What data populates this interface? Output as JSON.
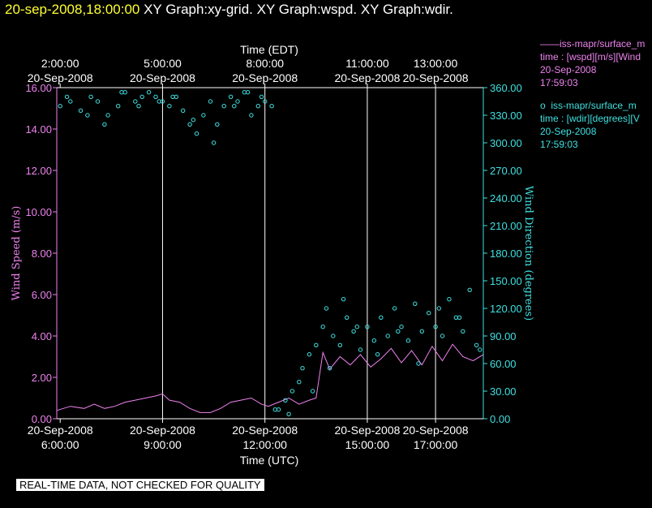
{
  "header": {
    "timestamp": "20-sep-2008,18:00:00",
    "graph_titles": [
      "XY Graph:xy-grid.",
      "XY Graph:wspd.",
      "XY Graph:wdir."
    ]
  },
  "legend": [
    {
      "marker": "——",
      "lines": [
        "iss-mapr/surface_m",
        "time : [wspd][m/s][Wind",
        "20-Sep-2008",
        "17:59:03"
      ],
      "color": "#ee82ee"
    },
    {
      "marker": "o",
      "lines": [
        "iss-mapr/surface_m",
        "time : [wdir][degrees][V",
        "20-Sep-2008",
        "17:59:03"
      ],
      "color": "#40e0e0"
    }
  ],
  "disclaimer": "REAL-TIME DATA, NOT CHECKED FOR QUALITY",
  "colors": {
    "speed": "#ee82ee",
    "direction": "#40e0e0",
    "grid": "#ffffff",
    "timestamp": "#ffff33"
  },
  "chart_data": {
    "type": "scatter",
    "top_axis_label": "Time (EDT)",
    "bottom_axis_label": "Time (UTC)",
    "left_axis_label": "Wind Speed (m/s)",
    "right_axis_label": "Wind Direction (degrees)",
    "x_range_utc_hours": [
      5.9,
      18.4
    ],
    "gridlines_utc_hours": [
      9,
      12,
      15,
      17
    ],
    "top_ticks": [
      {
        "hour": 6,
        "lines": [
          "2:00:00",
          "20-Sep-2008"
        ]
      },
      {
        "hour": 9,
        "lines": [
          "5:00:00",
          "20-Sep-2008"
        ]
      },
      {
        "hour": 12,
        "lines": [
          "8:00:00",
          "20-Sep-2008"
        ]
      },
      {
        "hour": 15,
        "lines": [
          "11:00:00",
          "20-Sep-2008"
        ]
      },
      {
        "hour": 17,
        "lines": [
          "13:00:00",
          "20-Sep-2008"
        ]
      }
    ],
    "bottom_ticks": [
      {
        "hour": 6,
        "lines": [
          "20-Sep-2008",
          "6:00:00"
        ]
      },
      {
        "hour": 9,
        "lines": [
          "20-Sep-2008",
          "9:00:00"
        ]
      },
      {
        "hour": 12,
        "lines": [
          "20-Sep-2008",
          "12:00:00"
        ]
      },
      {
        "hour": 15,
        "lines": [
          "20-Sep-2008",
          "15:00:00"
        ]
      },
      {
        "hour": 17,
        "lines": [
          "20-Sep-2008",
          "17:00:00"
        ]
      }
    ],
    "left_ticks": {
      "values": [
        0,
        2,
        4,
        6,
        8,
        10,
        12,
        14,
        16
      ],
      "labels": [
        "0.00",
        "2.00",
        "4.00",
        "6.00",
        "8.00",
        "10.00",
        "12.00",
        "14.00",
        "16.00"
      ]
    },
    "right_ticks": {
      "values": [
        0,
        30,
        60,
        90,
        120,
        150,
        180,
        210,
        240,
        270,
        300,
        330,
        360
      ],
      "labels": [
        "0.00",
        "30.00",
        "60.00",
        "90.00",
        "120.00",
        "150.00",
        "180.00",
        "210.00",
        "240.00",
        "270.00",
        "300.00",
        "330.00",
        "360.00"
      ]
    },
    "ylim_left": [
      0,
      16
    ],
    "ylim_right": [
      0,
      360
    ],
    "series": [
      {
        "name": "iss-mapr/surface_m wspd",
        "style": "line",
        "axis": "left",
        "x": [
          5.9,
          6.3,
          6.7,
          7.0,
          7.3,
          7.6,
          7.9,
          8.2,
          8.5,
          8.8,
          9.0,
          9.2,
          9.5,
          9.8,
          10.1,
          10.4,
          10.7,
          11.0,
          11.3,
          11.6,
          11.9,
          12.1,
          12.4,
          12.7,
          13.0,
          13.3,
          13.5,
          13.7,
          13.9,
          14.2,
          14.5,
          14.8,
          15.1,
          15.4,
          15.7,
          16.0,
          16.3,
          16.6,
          16.9,
          17.2,
          17.5,
          17.8,
          18.1,
          18.4
        ],
        "y": [
          0.4,
          0.6,
          0.5,
          0.7,
          0.5,
          0.6,
          0.8,
          0.9,
          1.0,
          1.1,
          1.2,
          0.9,
          0.8,
          0.5,
          0.3,
          0.3,
          0.5,
          0.8,
          0.9,
          1.0,
          0.7,
          0.6,
          0.8,
          1.0,
          0.7,
          0.9,
          1.0,
          3.2,
          2.4,
          3.0,
          2.6,
          3.1,
          2.5,
          2.9,
          3.4,
          2.7,
          3.3,
          2.6,
          3.5,
          2.8,
          3.6,
          3.0,
          2.8,
          3.1
        ]
      },
      {
        "name": "iss-mapr/surface_m wdir",
        "style": "points",
        "axis": "right",
        "x": [
          6.0,
          6.3,
          6.6,
          6.9,
          7.1,
          7.4,
          7.7,
          7.9,
          8.2,
          8.4,
          8.6,
          8.8,
          9.0,
          9.2,
          9.4,
          9.6,
          9.8,
          10.0,
          10.2,
          10.4,
          10.6,
          10.8,
          11.0,
          11.2,
          11.4,
          11.6,
          11.8,
          12.0,
          12.2,
          12.4,
          12.6,
          12.8,
          13.0,
          13.1,
          13.3,
          13.5,
          13.7,
          13.8,
          14.0,
          14.2,
          14.4,
          14.6,
          14.8,
          15.0,
          15.2,
          15.4,
          15.6,
          15.8,
          16.0,
          16.2,
          16.4,
          16.6,
          16.8,
          17.0,
          17.2,
          17.4,
          17.6,
          17.8,
          18.0,
          18.2,
          6.2,
          6.8,
          7.3,
          7.8,
          8.3,
          8.9,
          9.3,
          9.9,
          10.5,
          11.1,
          11.5,
          11.9,
          12.3,
          12.7,
          13.4,
          13.9,
          14.3,
          14.7,
          15.3,
          15.9,
          16.5,
          17.1,
          17.7,
          18.3
        ],
        "y": [
          340,
          345,
          335,
          350,
          345,
          330,
          340,
          355,
          345,
          350,
          355,
          350,
          345,
          340,
          350,
          335,
          320,
          310,
          330,
          345,
          320,
          340,
          350,
          345,
          355,
          330,
          340,
          345,
          340,
          10,
          20,
          30,
          40,
          55,
          70,
          80,
          100,
          120,
          90,
          80,
          110,
          95,
          75,
          100,
          85,
          110,
          90,
          120,
          100,
          85,
          125,
          95,
          115,
          100,
          90,
          130,
          110,
          95,
          140,
          80,
          350,
          330,
          320,
          355,
          340,
          345,
          350,
          325,
          300,
          340,
          355,
          350,
          10,
          5,
          30,
          55,
          130,
          100,
          70,
          95,
          60,
          120,
          110,
          75
        ]
      }
    ]
  }
}
